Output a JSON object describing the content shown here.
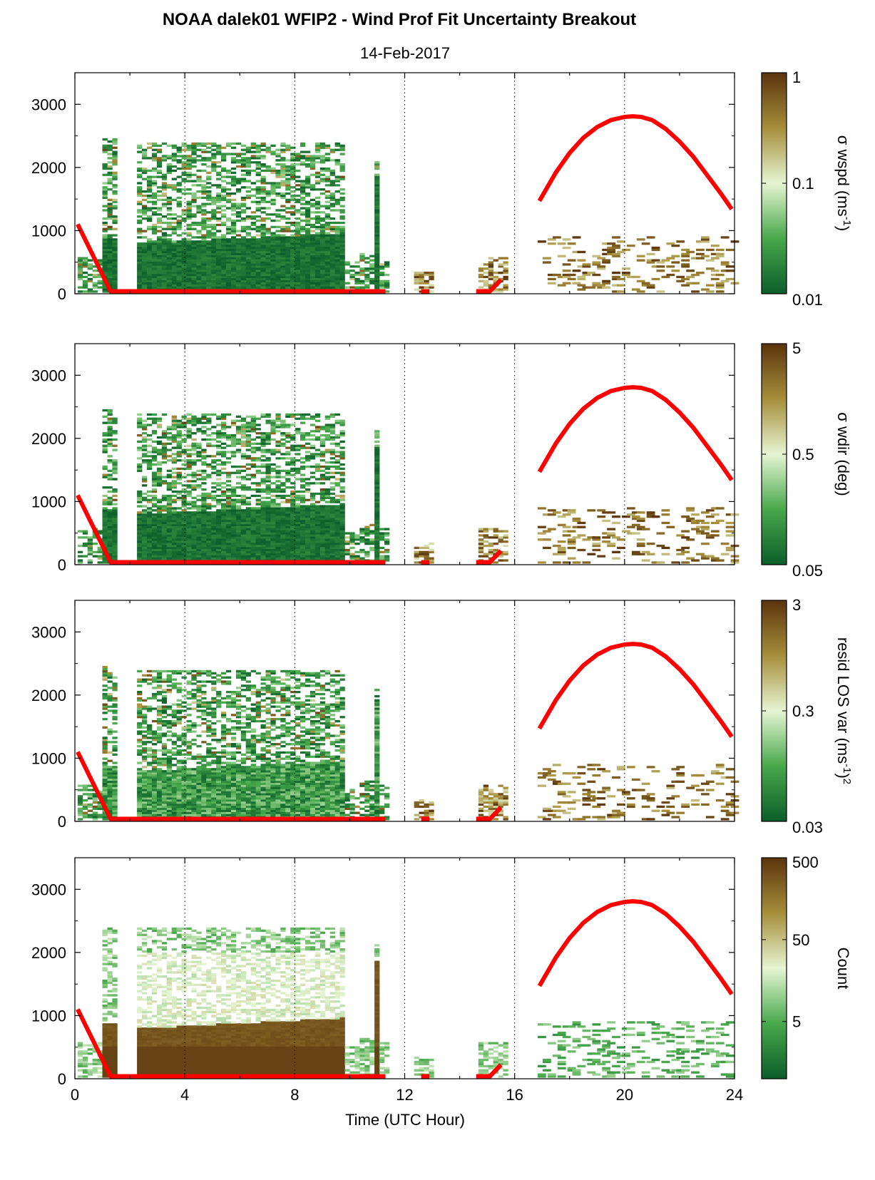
{
  "title": "NOAA dalek01 WFIP2 - Wind Prof Fit Uncertainty Breakout",
  "subtitle": "14-Feb-2017",
  "xlabel": "Time (UTC Hour)",
  "colors": {
    "low": "#0b5e2a",
    "mid_green": "#48a84b",
    "light": "#e6f5d3",
    "mid_brown": "#a68e3a",
    "high": "#5b340d",
    "sun_curve": "#ff0000",
    "grid": "#000000"
  },
  "chart_data": [
    {
      "type": "heatmap",
      "panel": "sigma-wspd",
      "xlim": [
        0,
        24
      ],
      "ylim": [
        0,
        3500
      ],
      "xticks": [
        0,
        4,
        8,
        12,
        16,
        20,
        24
      ],
      "yticks": [
        0,
        1000,
        2000,
        3000
      ],
      "grid_x": [
        4,
        8,
        12,
        16,
        20
      ],
      "colorbar": {
        "label_parts": [
          "σ wspd (ms",
          "-1",
          ")"
        ],
        "scale": "log",
        "min": 0.01,
        "max": 1,
        "ticks": [
          "1",
          "0.1",
          "0.01"
        ]
      }
    },
    {
      "type": "heatmap",
      "panel": "sigma-wdir",
      "xlim": [
        0,
        24
      ],
      "ylim": [
        0,
        3500
      ],
      "xticks": [
        0,
        4,
        8,
        12,
        16,
        20,
        24
      ],
      "yticks": [
        0,
        1000,
        2000,
        3000
      ],
      "grid_x": [
        4,
        8,
        12,
        16,
        20
      ],
      "colorbar": {
        "label_parts": [
          "σ wdir (deg)"
        ],
        "scale": "log",
        "min": 0.05,
        "max": 5,
        "ticks": [
          "5",
          "0.5",
          "0.05"
        ]
      }
    },
    {
      "type": "heatmap",
      "panel": "resid-los-var",
      "xlim": [
        0,
        24
      ],
      "ylim": [
        0,
        3500
      ],
      "xticks": [
        0,
        4,
        8,
        12,
        16,
        20,
        24
      ],
      "yticks": [
        0,
        1000,
        2000,
        3000
      ],
      "grid_x": [
        4,
        8,
        12,
        16,
        20
      ],
      "colorbar": {
        "label_parts": [
          "resid LOS var (ms",
          "-1",
          ")",
          "2"
        ],
        "scale": "log",
        "min": 0.03,
        "max": 3,
        "ticks": [
          "3",
          "0.3",
          "0.03"
        ]
      }
    },
    {
      "type": "heatmap",
      "panel": "count",
      "xlim": [
        0,
        24
      ],
      "ylim": [
        0,
        3500
      ],
      "xticks": [
        0,
        4,
        8,
        12,
        16,
        20,
        24
      ],
      "yticks": [
        0,
        1000,
        2000,
        3000
      ],
      "grid_x": [
        4,
        8,
        12,
        16,
        20
      ],
      "colorbar": {
        "label_parts": [
          "Count"
        ],
        "scale": "log",
        "min": 1,
        "max": 500,
        "ticks": [
          "500",
          "50",
          "5"
        ]
      }
    }
  ],
  "sun_curve": {
    "segments": [
      {
        "x": [
          0.1,
          1.3,
          11.3
        ],
        "y": [
          1100,
          40,
          40
        ]
      },
      {
        "x": [
          12.6,
          12.9
        ],
        "y": [
          40,
          40
        ]
      },
      {
        "x": [
          14.6,
          15.1,
          15.5
        ],
        "y": [
          40,
          40,
          220
        ]
      },
      {
        "x": [
          16.9,
          17.5,
          18,
          18.5,
          19,
          19.5,
          20,
          20.3,
          20.6,
          21,
          21.5,
          22,
          22.5,
          23,
          23.5,
          23.9
        ],
        "y": [
          1470,
          1920,
          2230,
          2470,
          2640,
          2750,
          2800,
          2810,
          2800,
          2750,
          2610,
          2410,
          2170,
          1880,
          1590,
          1340
        ]
      }
    ]
  }
}
